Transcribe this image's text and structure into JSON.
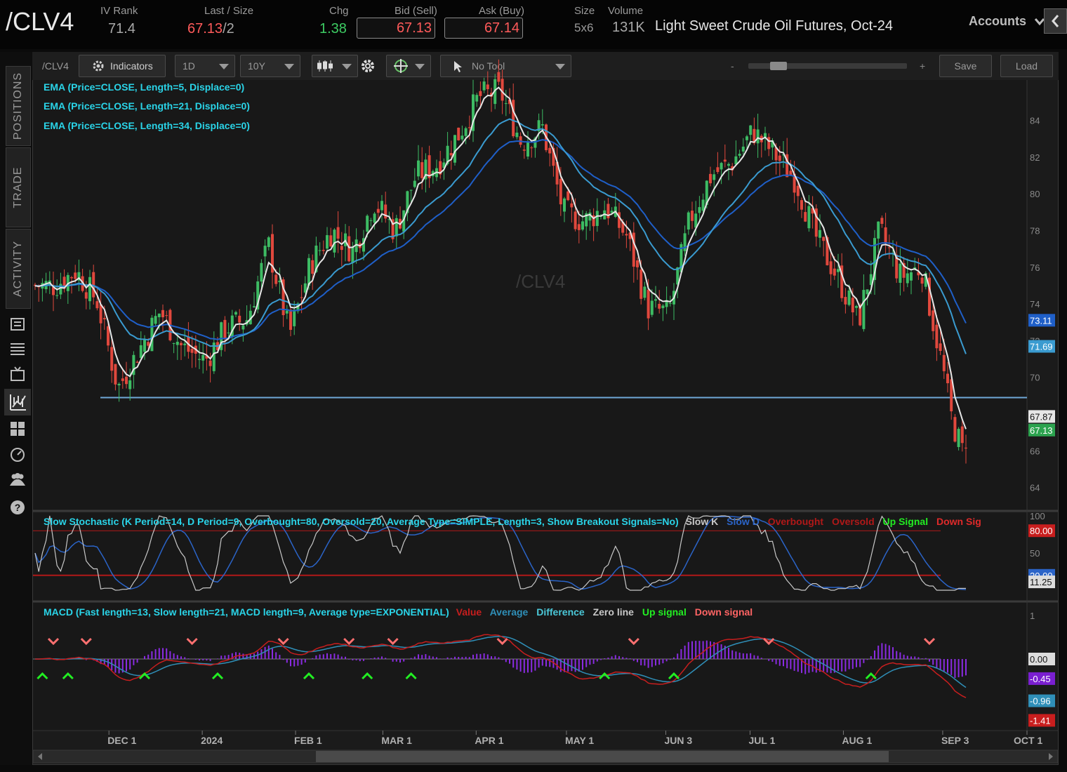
{
  "header": {
    "symbol": "/CLV4",
    "iv_rank_label": "IV Rank",
    "iv_rank_value": "71.4",
    "last_size_label": "Last / Size",
    "last_value": "67.13",
    "size_value": "/2",
    "chg_label": "Chg",
    "chg_value": "1.38",
    "bid_label": "Bid (Sell)",
    "bid_value": "67.13",
    "ask_label": "Ask (Buy)",
    "ask_value": "67.14",
    "size_label": "Size",
    "size_bidask": "5x6",
    "volume_label": "Volume",
    "volume_value": "131K",
    "description": "Light Sweet Crude Oil Futures, Oct-24",
    "accounts_label": "Accounts"
  },
  "sidebar": {
    "tabs": [
      "POSITIONS",
      "TRADE",
      "ACTIVITY"
    ],
    "icons": [
      "monitor-icon",
      "list-icon",
      "tv-icon",
      "chart-icon",
      "grid-icon",
      "gauge-icon",
      "people-icon",
      "help-icon"
    ]
  },
  "toolbar": {
    "symbol": "/CLV4",
    "indicators_label": "Indicators",
    "aggregation": "1D",
    "timeframe": "10Y",
    "tool": "No Tool",
    "zoom_minus": "-",
    "zoom_plus": "+",
    "save_label": "Save",
    "load_label": "Load"
  },
  "studies": {
    "ema1": "EMA (Price=CLOSE, Length=5, Displace=0)",
    "ema2": "EMA (Price=CLOSE, Length=21, Displace=0)",
    "ema3": "EMA (Price=CLOSE, Length=34, Displace=0)",
    "watermark": "/CLV4",
    "stoch_title": "Slow Stochastic (K Period=14, D Period=9, Overbought=80, Oversold=20, Average Type=SIMPLE, Length=3, Show Breakout Signals=No)",
    "stoch_legend": [
      "Slow K",
      "Slow D",
      "Overbought",
      "Oversold",
      "Up Signal",
      "Down Sig"
    ],
    "macd_title": "MACD (Fast length=13, Slow length=21, MACD length=9, Average type=EXPONENTIAL)",
    "macd_legend": [
      "Value",
      "Average",
      "Difference",
      "Zero line",
      "Up signal",
      "Down signal"
    ]
  },
  "colors": {
    "up_candle": "#3dbb63",
    "down_candle": "#e0483d",
    "ema5": "#e6e6e6",
    "ema21": "#3a9bd0",
    "ema34": "#1f5fc8",
    "support": "#6fa8d8",
    "slow_k": "#c8c8c8",
    "slow_d": "#2b64c8",
    "macd_value": "#c81e1e",
    "macd_avg": "#2f8fb8",
    "macd_diff": "#8a2be2",
    "up_signal": "#22ee22",
    "down_signal": "#ff7070",
    "cyan_text": "#2ad4e8"
  },
  "chart_data": [
    {
      "type": "candlestick",
      "title": "/CLV4",
      "x_ticks": [
        "DEC 1",
        "2024",
        "FEB 1",
        "MAR 1",
        "APR 1",
        "MAY 1",
        "JUN 3",
        "JUL 1",
        "AUG 1",
        "SEP 3",
        "OCT 1"
      ],
      "y_ticks": [
        64,
        66,
        68,
        70,
        72,
        74,
        76,
        78,
        80,
        82,
        84
      ],
      "ylim": [
        62.8,
        86.2
      ],
      "support_level": 68.9,
      "close_path": [
        [
          "2023-11-13",
          75.0
        ],
        [
          "2023-11-20",
          75.8
        ],
        [
          "2023-11-27",
          74.2
        ],
        [
          "2023-12-04",
          69.4
        ],
        [
          "2023-12-11",
          71.5
        ],
        [
          "2023-12-18",
          73.6
        ],
        [
          "2023-12-25",
          71.7
        ],
        [
          "2024-01-02",
          70.9
        ],
        [
          "2024-01-09",
          72.7
        ],
        [
          "2024-01-16",
          73.2
        ],
        [
          "2024-01-23",
          77.2
        ],
        [
          "2024-01-30",
          72.3
        ],
        [
          "2024-02-06",
          76.2
        ],
        [
          "2024-02-13",
          78.0
        ],
        [
          "2024-02-20",
          76.9
        ],
        [
          "2024-02-27",
          79.6
        ],
        [
          "2024-03-05",
          78.0
        ],
        [
          "2024-03-12",
          81.0
        ],
        [
          "2024-03-19",
          81.6
        ],
        [
          "2024-03-26",
          83.2
        ],
        [
          "2024-04-02",
          85.3
        ],
        [
          "2024-04-09",
          85.6
        ],
        [
          "2024-04-16",
          82.8
        ],
        [
          "2024-04-23",
          83.6
        ],
        [
          "2024-04-30",
          79.0
        ],
        [
          "2024-05-07",
          78.5
        ],
        [
          "2024-05-14",
          79.3
        ],
        [
          "2024-05-21",
          77.7
        ],
        [
          "2024-05-28",
          73.8
        ],
        [
          "2024-06-04",
          73.5
        ],
        [
          "2024-06-11",
          78.6
        ],
        [
          "2024-06-18",
          81.0
        ],
        [
          "2024-06-25",
          81.7
        ],
        [
          "2024-07-02",
          83.4
        ],
        [
          "2024-07-09",
          82.2
        ],
        [
          "2024-07-16",
          80.8
        ],
        [
          "2024-07-23",
          77.6
        ],
        [
          "2024-07-30",
          75.5
        ],
        [
          "2024-08-06",
          73.0
        ],
        [
          "2024-08-13",
          78.0
        ],
        [
          "2024-08-20",
          75.5
        ],
        [
          "2024-08-27",
          76.0
        ],
        [
          "2024-09-03",
          70.5
        ],
        [
          "2024-09-06",
          67.7
        ],
        [
          "2024-09-10",
          65.75
        ],
        [
          "2024-09-11",
          67.13
        ]
      ],
      "series": [
        {
          "name": "EMA (Price=CLOSE, Length=5, Displace=0)",
          "last_value": 67.87
        },
        {
          "name": "EMA (Price=CLOSE, Length=21, Displace=0)",
          "last_value": 73.11
        },
        {
          "name": "EMA (Price=CLOSE, Length=34, Displace=0)",
          "last_value": 71.69
        }
      ],
      "price_tags": [
        "73.11",
        "71.69",
        "67.87",
        "67.13"
      ]
    },
    {
      "type": "line",
      "title": "Slow Stochastic (K Period=14, D Period=9, Overbought=80, Oversold=20, Average Type=SIMPLE, Length=3, Show Breakout Signals=No)",
      "y_ticks": [
        50,
        100
      ],
      "overbought": 80,
      "oversold": 20,
      "price_tags": [
        "80.00",
        "20.00",
        "11.25"
      ],
      "series": [
        {
          "name": "Slow K",
          "last_value": 11.25
        },
        {
          "name": "Slow D"
        }
      ]
    },
    {
      "type": "line",
      "title": "MACD (Fast length=13, Slow length=21, MACD length=9, Average type=EXPONENTIAL)",
      "y_ticks": [
        1
      ],
      "price_tags": [
        "0.00",
        "-0.45",
        "-0.96",
        "-1.41"
      ],
      "series": [
        {
          "name": "Value",
          "last_value": -1.41
        },
        {
          "name": "Average",
          "last_value": -0.96
        },
        {
          "name": "Difference",
          "last_value": -0.45
        },
        {
          "name": "Zero line",
          "last_value": 0.0
        }
      ]
    }
  ]
}
